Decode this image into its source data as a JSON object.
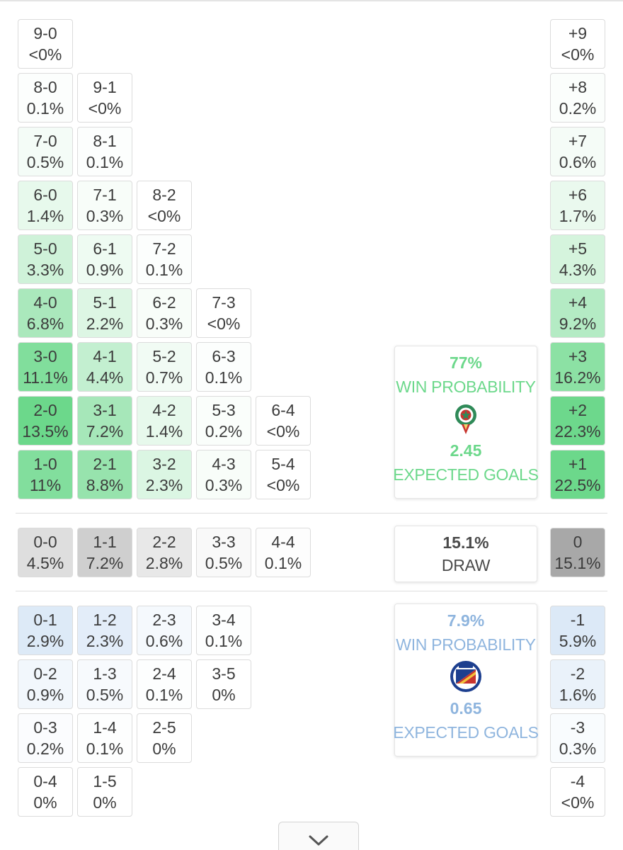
{
  "home": {
    "win_pct": "77%",
    "win_label": "WIN PROBABILITY",
    "xg": "2.45",
    "xg_label": "EXPECTED GOALS",
    "accent": "#6cd88b",
    "crest_icon": "morocco-crest-icon"
  },
  "draw": {
    "pct": "15.1%",
    "label": "DRAW"
  },
  "away": {
    "win_pct": "7.9%",
    "win_label": "WIN PROBABILITY",
    "xg": "0.65",
    "xg_label": "EXPECTED GOALS",
    "accent": "#8fb5de",
    "crest_icon": "haiti-crest-icon"
  },
  "home_win_grid": [
    {
      "col": 0,
      "row": 0,
      "score": "9-0",
      "pct": "<0%",
      "p": 0
    },
    {
      "col": 0,
      "row": 1,
      "score": "8-0",
      "pct": "0.1%",
      "p": 0.1
    },
    {
      "col": 1,
      "row": 1,
      "score": "9-1",
      "pct": "<0%",
      "p": 0
    },
    {
      "col": 0,
      "row": 2,
      "score": "7-0",
      "pct": "0.5%",
      "p": 0.5
    },
    {
      "col": 1,
      "row": 2,
      "score": "8-1",
      "pct": "0.1%",
      "p": 0.1
    },
    {
      "col": 0,
      "row": 3,
      "score": "6-0",
      "pct": "1.4%",
      "p": 1.4
    },
    {
      "col": 1,
      "row": 3,
      "score": "7-1",
      "pct": "0.3%",
      "p": 0.3
    },
    {
      "col": 2,
      "row": 3,
      "score": "8-2",
      "pct": "<0%",
      "p": 0
    },
    {
      "col": 0,
      "row": 4,
      "score": "5-0",
      "pct": "3.3%",
      "p": 3.3
    },
    {
      "col": 1,
      "row": 4,
      "score": "6-1",
      "pct": "0.9%",
      "p": 0.9
    },
    {
      "col": 2,
      "row": 4,
      "score": "7-2",
      "pct": "0.1%",
      "p": 0.1
    },
    {
      "col": 0,
      "row": 5,
      "score": "4-0",
      "pct": "6.8%",
      "p": 6.8
    },
    {
      "col": 1,
      "row": 5,
      "score": "5-1",
      "pct": "2.2%",
      "p": 2.2
    },
    {
      "col": 2,
      "row": 5,
      "score": "6-2",
      "pct": "0.3%",
      "p": 0.3
    },
    {
      "col": 3,
      "row": 5,
      "score": "7-3",
      "pct": "<0%",
      "p": 0
    },
    {
      "col": 0,
      "row": 6,
      "score": "3-0",
      "pct": "11.1%",
      "p": 11.1
    },
    {
      "col": 1,
      "row": 6,
      "score": "4-1",
      "pct": "4.4%",
      "p": 4.4
    },
    {
      "col": 2,
      "row": 6,
      "score": "5-2",
      "pct": "0.7%",
      "p": 0.7
    },
    {
      "col": 3,
      "row": 6,
      "score": "6-3",
      "pct": "0.1%",
      "p": 0.1
    },
    {
      "col": 0,
      "row": 7,
      "score": "2-0",
      "pct": "13.5%",
      "p": 13.5
    },
    {
      "col": 1,
      "row": 7,
      "score": "3-1",
      "pct": "7.2%",
      "p": 7.2
    },
    {
      "col": 2,
      "row": 7,
      "score": "4-2",
      "pct": "1.4%",
      "p": 1.4
    },
    {
      "col": 3,
      "row": 7,
      "score": "5-3",
      "pct": "0.2%",
      "p": 0.2
    },
    {
      "col": 4,
      "row": 7,
      "score": "6-4",
      "pct": "<0%",
      "p": 0
    },
    {
      "col": 0,
      "row": 8,
      "score": "1-0",
      "pct": "11%",
      "p": 11
    },
    {
      "col": 1,
      "row": 8,
      "score": "2-1",
      "pct": "8.8%",
      "p": 8.8
    },
    {
      "col": 2,
      "row": 8,
      "score": "3-2",
      "pct": "2.3%",
      "p": 2.3
    },
    {
      "col": 3,
      "row": 8,
      "score": "4-3",
      "pct": "0.3%",
      "p": 0.3
    },
    {
      "col": 4,
      "row": 8,
      "score": "5-4",
      "pct": "<0%",
      "p": 0
    }
  ],
  "home_margins": [
    {
      "row": 0,
      "margin": "+9",
      "pct": "<0%",
      "p": 0
    },
    {
      "row": 1,
      "margin": "+8",
      "pct": "0.2%",
      "p": 0.2
    },
    {
      "row": 2,
      "margin": "+7",
      "pct": "0.6%",
      "p": 0.6
    },
    {
      "row": 3,
      "margin": "+6",
      "pct": "1.7%",
      "p": 1.7
    },
    {
      "row": 4,
      "margin": "+5",
      "pct": "4.3%",
      "p": 4.3
    },
    {
      "row": 5,
      "margin": "+4",
      "pct": "9.2%",
      "p": 9.2
    },
    {
      "row": 6,
      "margin": "+3",
      "pct": "16.2%",
      "p": 16.2
    },
    {
      "row": 7,
      "margin": "+2",
      "pct": "22.3%",
      "p": 22.3
    },
    {
      "row": 8,
      "margin": "+1",
      "pct": "22.5%",
      "p": 22.5
    }
  ],
  "draw_grid": [
    {
      "col": 0,
      "score": "0-0",
      "pct": "4.5%",
      "p": 4.5
    },
    {
      "col": 1,
      "score": "1-1",
      "pct": "7.2%",
      "p": 7.2
    },
    {
      "col": 2,
      "score": "2-2",
      "pct": "2.8%",
      "p": 2.8
    },
    {
      "col": 3,
      "score": "3-3",
      "pct": "0.5%",
      "p": 0.5
    },
    {
      "col": 4,
      "score": "4-4",
      "pct": "0.1%",
      "p": 0.1
    }
  ],
  "draw_margin": {
    "margin": "0",
    "pct": "15.1%",
    "p": 15.1
  },
  "away_win_grid": [
    {
      "col": 0,
      "row": 0,
      "score": "0-1",
      "pct": "2.9%",
      "p": 2.9
    },
    {
      "col": 1,
      "row": 0,
      "score": "1-2",
      "pct": "2.3%",
      "p": 2.3
    },
    {
      "col": 2,
      "row": 0,
      "score": "2-3",
      "pct": "0.6%",
      "p": 0.6
    },
    {
      "col": 3,
      "row": 0,
      "score": "3-4",
      "pct": "0.1%",
      "p": 0.1
    },
    {
      "col": 0,
      "row": 1,
      "score": "0-2",
      "pct": "0.9%",
      "p": 0.9
    },
    {
      "col": 1,
      "row": 1,
      "score": "1-3",
      "pct": "0.5%",
      "p": 0.5
    },
    {
      "col": 2,
      "row": 1,
      "score": "2-4",
      "pct": "0.1%",
      "p": 0.1
    },
    {
      "col": 3,
      "row": 1,
      "score": "3-5",
      "pct": "0%",
      "p": 0
    },
    {
      "col": 0,
      "row": 2,
      "score": "0-3",
      "pct": "0.2%",
      "p": 0.2
    },
    {
      "col": 1,
      "row": 2,
      "score": "1-4",
      "pct": "0.1%",
      "p": 0.1
    },
    {
      "col": 2,
      "row": 2,
      "score": "2-5",
      "pct": "0%",
      "p": 0
    },
    {
      "col": 0,
      "row": 3,
      "score": "0-4",
      "pct": "0%",
      "p": 0
    },
    {
      "col": 1,
      "row": 3,
      "score": "1-5",
      "pct": "0%",
      "p": 0
    }
  ],
  "away_margins": [
    {
      "row": 0,
      "margin": "-1",
      "pct": "5.9%",
      "p": 5.9
    },
    {
      "row": 1,
      "margin": "-2",
      "pct": "1.6%",
      "p": 1.6
    },
    {
      "row": 2,
      "margin": "-3",
      "pct": "0.3%",
      "p": 0.3
    },
    {
      "row": 3,
      "margin": "-4",
      "pct": "<0%",
      "p": 0
    }
  ],
  "expand_icon": "chevron-down-icon"
}
